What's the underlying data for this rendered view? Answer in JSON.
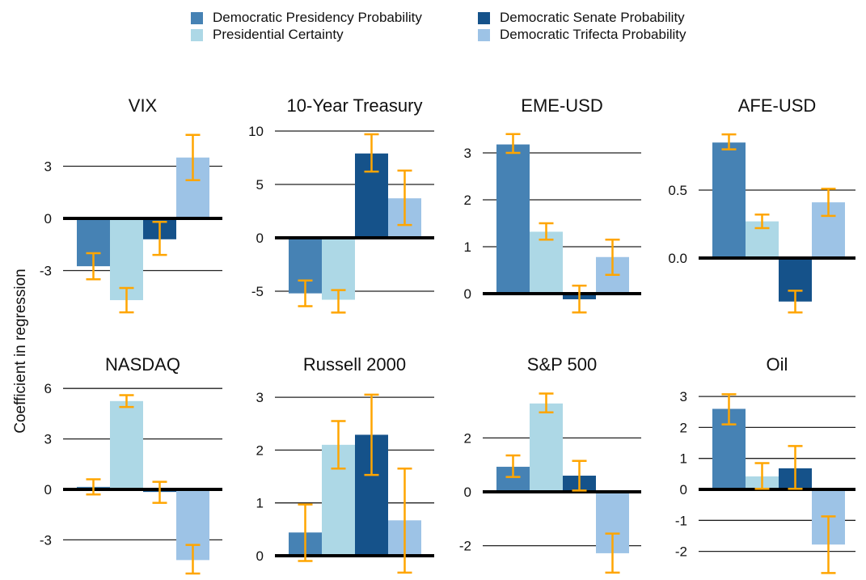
{
  "chart_data": {
    "type": "bar",
    "layout": "small-multiples 2x4",
    "ylabel": "Coefficient in regression",
    "error_bar_color": "#FFA500",
    "legend": {
      "placement": "top-center",
      "entries": [
        {
          "name": "Democratic Presidency Probability",
          "color": "#4682B4"
        },
        {
          "name": "Presidential Certainty",
          "color": "#ADD8E6"
        },
        {
          "name": "Democratic Senate Probability",
          "color": "#15528A"
        },
        {
          "name": "Democratic Trifecta Probability",
          "color": "#9DC3E6"
        }
      ]
    },
    "series": [
      "Democratic Presidency Probability",
      "Presidential Certainty",
      "Democratic Senate Probability",
      "Democratic Trifecta Probability"
    ],
    "panels": [
      {
        "title": "VIX",
        "ylim": [
          -5.7,
          5.2
        ],
        "ticks": [
          -3,
          0,
          3
        ],
        "tick_labels": [
          "-3",
          "0",
          "3"
        ],
        "values": [
          -2.75,
          -4.7,
          -1.2,
          3.5
        ],
        "ci": [
          [
            -3.5,
            -2.0
          ],
          [
            -5.4,
            -4.0
          ],
          [
            -2.1,
            -0.2
          ],
          [
            2.2,
            4.8
          ]
        ]
      },
      {
        "title": "10-Year Treasury",
        "ylim": [
          -7.3,
          10.6
        ],
        "ticks": [
          -5,
          0,
          5,
          10
        ],
        "tick_labels": [
          "-5",
          "0",
          "5",
          "10"
        ],
        "values": [
          -5.2,
          -5.8,
          7.9,
          3.7
        ],
        "ci": [
          [
            -6.4,
            -4.0
          ],
          [
            -7.0,
            -4.9
          ],
          [
            6.2,
            9.7
          ],
          [
            1.2,
            6.3
          ]
        ]
      },
      {
        "title": "EME-USD",
        "ylim": [
          -0.48,
          3.55
        ],
        "ticks": [
          0,
          1,
          2,
          3
        ],
        "tick_labels": [
          "0",
          "1",
          "2",
          "3"
        ],
        "values": [
          3.18,
          1.32,
          -0.12,
          0.78
        ],
        "ci": [
          [
            3.0,
            3.4
          ],
          [
            1.15,
            1.5
          ],
          [
            -0.4,
            0.17
          ],
          [
            0.4,
            1.15
          ]
        ]
      },
      {
        "title": "AFE-USD",
        "ylim": [
          -0.42,
          0.96
        ],
        "ticks": [
          0.0,
          0.5
        ],
        "tick_labels": [
          "0.0",
          "0.5"
        ],
        "values": [
          0.85,
          0.27,
          -0.32,
          0.41
        ],
        "ci": [
          [
            0.8,
            0.91
          ],
          [
            0.22,
            0.32
          ],
          [
            -0.4,
            -0.24
          ],
          [
            0.31,
            0.51
          ]
        ]
      },
      {
        "title": "NASDAQ",
        "ylim": [
          -5.3,
          6.4
        ],
        "ticks": [
          -3,
          0,
          3,
          6
        ],
        "tick_labels": [
          "-3",
          "0",
          "3",
          "6"
        ],
        "values": [
          0.15,
          5.25,
          -0.15,
          -4.2
        ],
        "ci": [
          [
            -0.3,
            0.6
          ],
          [
            4.9,
            5.6
          ],
          [
            -0.8,
            0.45
          ],
          [
            -5.0,
            -3.3
          ]
        ]
      },
      {
        "title": "Russell 2000",
        "ylim": [
          -0.4,
          3.25
        ],
        "ticks": [
          0,
          1,
          2,
          3
        ],
        "tick_labels": [
          "0",
          "1",
          "2",
          "3"
        ],
        "values": [
          0.44,
          2.1,
          2.29,
          0.67
        ],
        "ci": [
          [
            -0.1,
            0.97
          ],
          [
            1.65,
            2.55
          ],
          [
            1.53,
            3.05
          ],
          [
            -0.32,
            1.65
          ]
        ]
      },
      {
        "title": "S&P 500",
        "ylim": [
          -3.15,
          3.9
        ],
        "ticks": [
          -2,
          0,
          2
        ],
        "tick_labels": [
          "-2",
          "0",
          "2"
        ],
        "values": [
          0.93,
          3.28,
          0.6,
          -2.28
        ],
        "ci": [
          [
            0.55,
            1.35
          ],
          [
            2.95,
            3.65
          ],
          [
            0.05,
            1.15
          ],
          [
            -3.0,
            -1.55
          ]
        ]
      },
      {
        "title": "Oil",
        "ylim": [
          -2.85,
          3.3
        ],
        "ticks": [
          -2,
          -1,
          0,
          1,
          2,
          3
        ],
        "tick_labels": [
          "-2",
          "-1",
          "0",
          "1",
          "2",
          "3"
        ],
        "values": [
          2.6,
          0.42,
          0.68,
          -1.78
        ],
        "ci": [
          [
            2.1,
            3.07
          ],
          [
            0.02,
            0.85
          ],
          [
            0.02,
            1.4
          ],
          [
            -2.7,
            -0.87
          ]
        ]
      }
    ]
  }
}
